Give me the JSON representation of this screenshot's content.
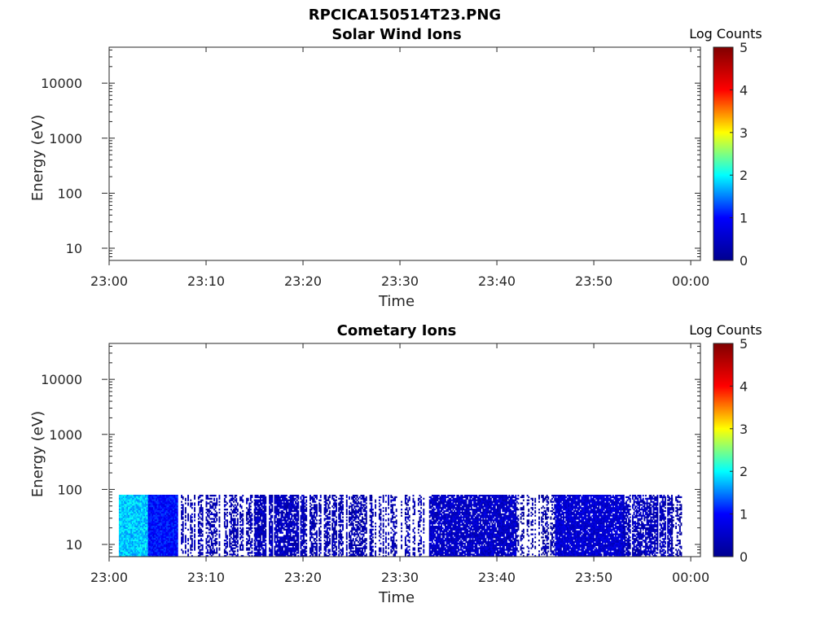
{
  "figure": {
    "title": "RPCICA150514T23.PNG"
  },
  "colors": {
    "axis": "#262626",
    "background": "#ffffff",
    "colormap": [
      "#00008f",
      "#0000ff",
      "#00ffff",
      "#ffff00",
      "#ff0000",
      "#800000"
    ]
  },
  "chart_data": [
    {
      "type": "heatmap",
      "title": "Solar Wind Ions",
      "xlabel": "Time",
      "ylabel": "Energy (eV)",
      "yscale": "log",
      "ylim": [
        6,
        45000
      ],
      "xlim": [
        "23:00",
        "00:01"
      ],
      "x_ticks": [
        "23:00",
        "23:10",
        "23:20",
        "23:30",
        "23:40",
        "23:50",
        "00:00"
      ],
      "y_ticks": [
        10,
        100,
        1000,
        10000
      ],
      "y_tick_labels": [
        "10",
        "100",
        "1000",
        "10000"
      ],
      "colorbar": {
        "label": "Log Counts",
        "range": [
          0,
          5
        ],
        "ticks": [
          "0",
          "1",
          "2",
          "3",
          "4",
          "5"
        ]
      },
      "data": []
    },
    {
      "type": "heatmap",
      "title": "Cometary Ions",
      "xlabel": "Time",
      "ylabel": "Energy (eV)",
      "yscale": "log",
      "ylim": [
        6,
        45000
      ],
      "xlim": [
        "23:00",
        "00:01"
      ],
      "x_ticks": [
        "23:00",
        "23:10",
        "23:20",
        "23:30",
        "23:40",
        "23:50",
        "00:00"
      ],
      "y_ticks": [
        10,
        100,
        1000,
        10000
      ],
      "y_tick_labels": [
        "10",
        "100",
        "1000",
        "10000"
      ],
      "colorbar": {
        "label": "Log Counts",
        "range": [
          0,
          5
        ],
        "ticks": [
          "0",
          "1",
          "2",
          "3",
          "4",
          "5"
        ]
      },
      "data": {
        "time_range": [
          "23:01",
          "23:59"
        ],
        "energy_range_eV": [
          6,
          80
        ],
        "segments": [
          {
            "start": "23:01",
            "end": "23:04",
            "log_counts": 1.8,
            "coverage": 1.0
          },
          {
            "start": "23:04",
            "end": "23:07",
            "log_counts": 1.0,
            "coverage": 0.95
          },
          {
            "start": "23:07",
            "end": "23:15",
            "log_counts": 0.3,
            "coverage": 0.45
          },
          {
            "start": "23:15",
            "end": "23:20",
            "log_counts": 0.4,
            "coverage": 0.7
          },
          {
            "start": "23:20",
            "end": "23:27",
            "log_counts": 0.3,
            "coverage": 0.55
          },
          {
            "start": "23:27",
            "end": "23:33",
            "log_counts": 0.3,
            "coverage": 0.4
          },
          {
            "start": "23:33",
            "end": "23:42",
            "log_counts": 0.5,
            "coverage": 0.75
          },
          {
            "start": "23:42",
            "end": "23:46",
            "log_counts": 0.2,
            "coverage": 0.35
          },
          {
            "start": "23:46",
            "end": "23:53",
            "log_counts": 0.6,
            "coverage": 0.8
          },
          {
            "start": "23:53",
            "end": "23:58",
            "log_counts": 0.4,
            "coverage": 0.6
          },
          {
            "start": "23:58",
            "end": "23:59",
            "log_counts": 0.2,
            "coverage": 0.3
          }
        ]
      }
    }
  ]
}
